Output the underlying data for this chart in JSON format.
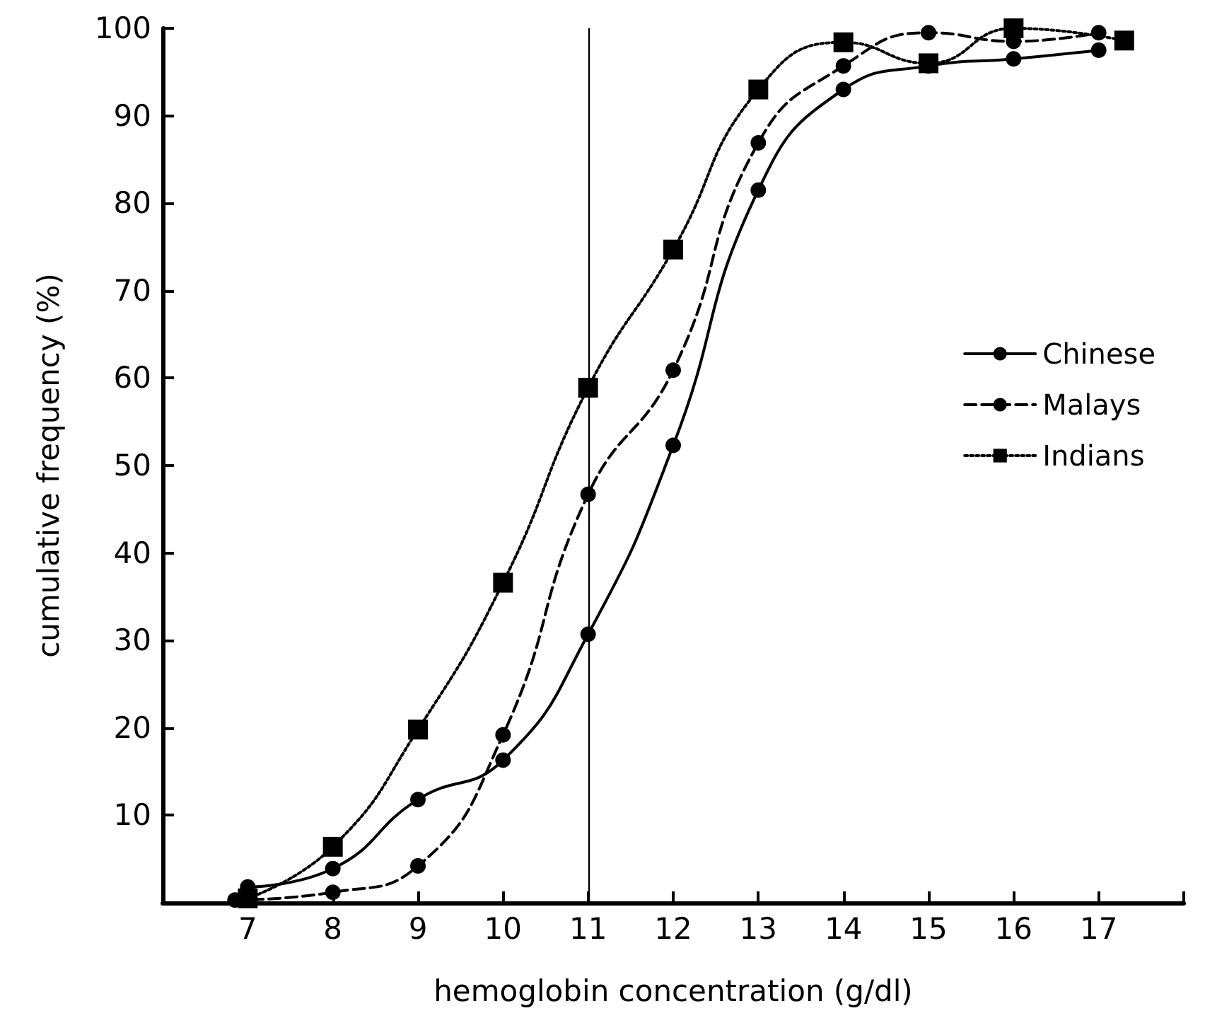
{
  "chart_data": {
    "type": "line",
    "xlabel": "hemoglobin concentration (g/dl)",
    "ylabel": "cumulative frequency (%)",
    "xlim": [
      6,
      18
    ],
    "xticks": [
      7,
      8,
      9,
      10,
      11,
      12,
      13,
      14,
      15,
      16,
      17,
      {
        "value": 18,
        "label": null
      }
    ],
    "ylim": [
      0,
      100
    ],
    "yticks": [
      10,
      20,
      30,
      40,
      50,
      60,
      70,
      80,
      90,
      100
    ],
    "series": [
      {
        "name": "Chinese",
        "color": "#000000",
        "marker": "circle",
        "line_style": "solid",
        "x": [
          7,
          8,
          9,
          10,
          11,
          12,
          13,
          14,
          15,
          16,
          17
        ],
        "values": [
          1.8,
          3.9,
          11.8,
          16.3,
          30.7,
          52.3,
          81.5,
          93,
          95.7,
          96.5,
          97.5
        ]
      },
      {
        "name": "Malays",
        "color": "#000000",
        "marker": "circle",
        "line_style": "dashed",
        "x": [
          6.85,
          8,
          9,
          10,
          11,
          12,
          13,
          14,
          15,
          16,
          17
        ],
        "values": [
          0.3,
          1.2,
          4.2,
          19.2,
          46.7,
          60.9,
          86.9,
          95.7,
          99.5,
          98.5,
          99.5
        ]
      },
      {
        "name": "Indians",
        "color": "#000000",
        "marker": "square",
        "line_style": "dotted",
        "x": [
          7,
          8,
          9,
          10,
          11,
          12,
          13,
          14,
          15,
          16,
          17.3
        ],
        "values": [
          0.5,
          6.4,
          19.8,
          36.6,
          58.9,
          74.7,
          93,
          98.4,
          96,
          100,
          98.6
        ]
      }
    ],
    "ref_lines": [
      {
        "axis": "x",
        "value": 11,
        "color": "#000000",
        "line_style": "solid"
      }
    ],
    "grid": false,
    "legend": "right"
  }
}
